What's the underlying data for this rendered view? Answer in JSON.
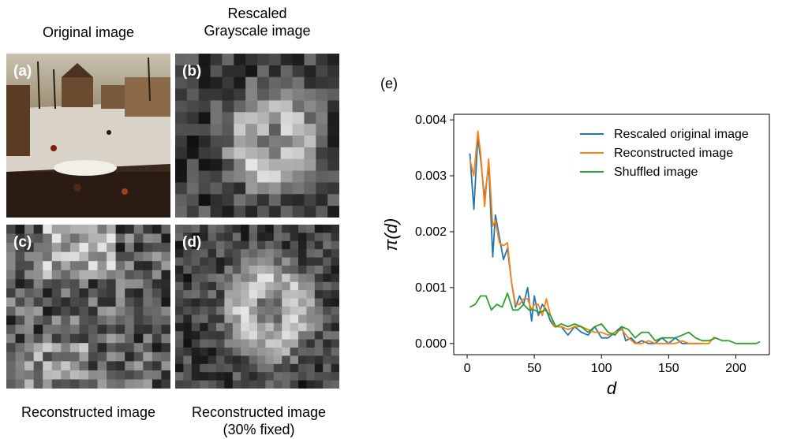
{
  "left": {
    "captions": {
      "a_top": "Original image",
      "b_top": "Rescaled\nGrayscale image",
      "c_bottom": "Reconstructed image",
      "d_bottom": "Reconstructed image\n(30% fixed)"
    },
    "panel_labels": {
      "a": "(a)",
      "b": "(b)",
      "c": "(c)",
      "d": "(d)"
    }
  },
  "chart_data": {
    "type": "line",
    "panel_label": "(e)",
    "xlabel": "d",
    "ylabel": "π(d)",
    "xlim": [
      -10,
      225
    ],
    "ylim": [
      -0.0002,
      0.0041
    ],
    "xticks": [
      0,
      50,
      100,
      150,
      200
    ],
    "yticks": [
      0.0,
      0.001,
      0.002,
      0.003,
      0.004
    ],
    "ytick_labels": [
      "0.000",
      "0.001",
      "0.002",
      "0.003",
      "0.004"
    ],
    "legend_position": "upper-right",
    "grid": false,
    "series": [
      {
        "name": "Rescaled original image",
        "color": "#1f77b4",
        "x": [
          2,
          5,
          8,
          10,
          13,
          16,
          19,
          21,
          24,
          27,
          30,
          33,
          36,
          39,
          42,
          45,
          48,
          50,
          53,
          56,
          59,
          62,
          65,
          70,
          75,
          80,
          85,
          90,
          95,
          100,
          105,
          110,
          115,
          118,
          122,
          126,
          130,
          135,
          140,
          145,
          150,
          155,
          160,
          165,
          170,
          175
        ],
        "y": [
          0.0034,
          0.0024,
          0.0037,
          0.0033,
          0.0026,
          0.0032,
          0.00155,
          0.0023,
          0.0019,
          0.0015,
          0.0017,
          0.0011,
          0.00065,
          0.00085,
          0.0007,
          0.001,
          0.0004,
          0.00085,
          0.0005,
          0.0007,
          0.0006,
          0.0004,
          0.0003,
          0.0003,
          0.00015,
          0.0003,
          0.0002,
          0.00015,
          0.0003,
          0.0001,
          0.0001,
          0.0002,
          0.0003,
          5e-05,
          0.0001,
          0.0,
          5e-05,
          0.0,
          0.0,
          0.0001,
          0.0,
          0.0001,
          0.0,
          0.0,
          0.0,
          0.0
        ]
      },
      {
        "name": "Reconstructed image",
        "color": "#ff7f0e",
        "x": [
          2,
          5,
          8,
          10,
          13,
          16,
          19,
          21,
          24,
          27,
          30,
          33,
          36,
          39,
          42,
          45,
          48,
          50,
          53,
          56,
          59,
          62,
          65,
          70,
          75,
          80,
          85,
          90,
          95,
          100,
          105,
          110,
          115,
          120,
          125,
          130,
          135,
          140,
          145,
          150,
          155,
          160,
          165,
          170,
          175,
          180,
          184
        ],
        "y": [
          0.0033,
          0.003,
          0.0038,
          0.0034,
          0.00245,
          0.0033,
          0.0021,
          0.0022,
          0.0018,
          0.00175,
          0.0018,
          0.0011,
          0.0007,
          0.0007,
          0.0008,
          0.0008,
          0.0006,
          0.0007,
          0.0007,
          0.0005,
          0.0008,
          0.0005,
          0.0003,
          0.0003,
          0.00025,
          0.0003,
          0.0003,
          0.00025,
          0.0002,
          0.0002,
          0.00015,
          0.0002,
          0.00025,
          0.0001,
          0.0,
          0.0,
          5e-05,
          0.0,
          0.0,
          0.0,
          0.0,
          5e-05,
          0.0,
          0.0,
          0.0,
          0.0,
          0.00012
        ]
      },
      {
        "name": "Shuffled image",
        "color": "#2ca02c",
        "x": [
          2,
          6,
          10,
          14,
          18,
          22,
          26,
          30,
          34,
          38,
          42,
          46,
          50,
          54,
          58,
          62,
          66,
          70,
          75,
          80,
          85,
          90,
          95,
          100,
          105,
          110,
          115,
          120,
          125,
          130,
          135,
          140,
          145,
          150,
          155,
          160,
          165,
          170,
          175,
          180,
          185,
          190,
          195,
          200,
          205,
          210,
          215,
          218
        ],
        "y": [
          0.00065,
          0.0007,
          0.00085,
          0.00085,
          0.0006,
          0.0007,
          0.00065,
          0.0009,
          0.0006,
          0.0006,
          0.0007,
          0.0006,
          0.0006,
          0.00055,
          0.0006,
          0.0005,
          0.0003,
          0.00035,
          0.0003,
          0.00035,
          0.0003,
          0.0002,
          0.0003,
          0.00035,
          0.0002,
          0.00015,
          0.0003,
          0.00025,
          0.0001,
          0.0002,
          0.0002,
          5e-05,
          0.0001,
          0.0001,
          0.0001,
          0.00015,
          0.0002,
          0.0001,
          5e-05,
          5e-05,
          0.0001,
          5e-05,
          5e-05,
          0.0,
          0.0,
          0.0,
          0.0,
          3e-05
        ]
      }
    ]
  }
}
